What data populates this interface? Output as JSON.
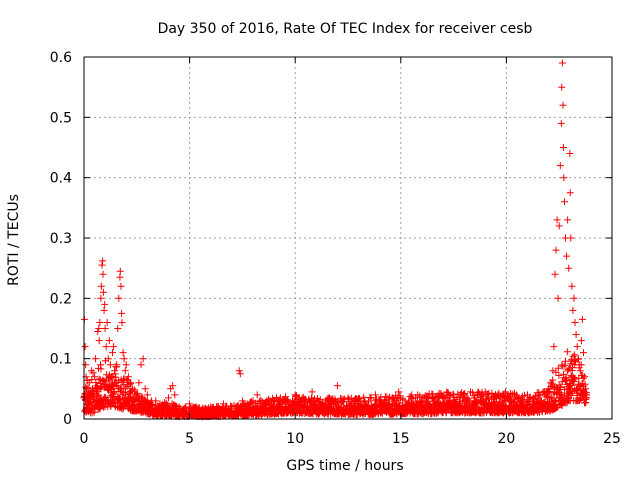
{
  "chart_data": {
    "type": "scatter",
    "title": "Day 350 of 2016, Rate Of TEC Index for receiver cesb",
    "xlabel": "GPS time / hours",
    "ylabel": "ROTI / TECUs",
    "xlim": [
      0,
      25
    ],
    "ylim": [
      0,
      0.6
    ],
    "x_ticks": [
      "0",
      "5",
      "10",
      "15",
      "20",
      "25"
    ],
    "y_ticks": [
      "0",
      "0.1",
      "0.2",
      "0.3",
      "0.4",
      "0.5",
      "0.6"
    ],
    "grid": true,
    "marker": "plus",
    "series_color": "#ff0000",
    "series": [
      {
        "points": [
          [
            0.02,
            0.165
          ],
          [
            0.05,
            0.12
          ],
          [
            0.08,
            0.09
          ],
          [
            0.1,
            0.07
          ],
          [
            0.12,
            0.05
          ],
          [
            0.15,
            0.04
          ],
          [
            0.2,
            0.03
          ],
          [
            0.25,
            0.06
          ],
          [
            0.3,
            0.045
          ],
          [
            0.35,
            0.08
          ],
          [
            0.4,
            0.05
          ],
          [
            0.45,
            0.035
          ],
          [
            0.5,
            0.07
          ],
          [
            0.55,
            0.1
          ],
          [
            0.6,
            0.055
          ],
          [
            0.65,
            0.145
          ],
          [
            0.7,
            0.15
          ],
          [
            0.72,
            0.13
          ],
          [
            0.75,
            0.16
          ],
          [
            0.78,
            0.09
          ],
          [
            0.8,
            0.2
          ],
          [
            0.82,
            0.22
          ],
          [
            0.85,
            0.255
          ],
          [
            0.88,
            0.262
          ],
          [
            0.9,
            0.24
          ],
          [
            0.92,
            0.21
          ],
          [
            0.95,
            0.18
          ],
          [
            0.98,
            0.19
          ],
          [
            1.0,
            0.15
          ],
          [
            1.05,
            0.12
          ],
          [
            1.1,
            0.16
          ],
          [
            1.15,
            0.1
          ],
          [
            1.2,
            0.13
          ],
          [
            1.25,
            0.09
          ],
          [
            1.3,
            0.07
          ],
          [
            1.35,
            0.11
          ],
          [
            1.4,
            0.12
          ],
          [
            1.45,
            0.08
          ],
          [
            1.5,
            0.06
          ],
          [
            1.55,
            0.09
          ],
          [
            1.6,
            0.15
          ],
          [
            1.65,
            0.2
          ],
          [
            1.7,
            0.235
          ],
          [
            1.72,
            0.245
          ],
          [
            1.75,
            0.22
          ],
          [
            1.78,
            0.175
          ],
          [
            1.8,
            0.16
          ],
          [
            1.85,
            0.11
          ],
          [
            1.9,
            0.1
          ],
          [
            1.95,
            0.08
          ],
          [
            2.0,
            0.09
          ],
          [
            2.1,
            0.07
          ],
          [
            2.2,
            0.06
          ],
          [
            2.3,
            0.05
          ],
          [
            2.4,
            0.045
          ],
          [
            2.5,
            0.04
          ],
          [
            2.6,
            0.06
          ],
          [
            2.7,
            0.09
          ],
          [
            2.8,
            0.1
          ],
          [
            2.9,
            0.05
          ],
          [
            3.0,
            0.04
          ],
          [
            3.2,
            0.03
          ],
          [
            3.4,
            0.03
          ],
          [
            3.6,
            0.025
          ],
          [
            3.8,
            0.02
          ],
          [
            4.0,
            0.035
          ],
          [
            4.1,
            0.05
          ],
          [
            4.2,
            0.055
          ],
          [
            4.3,
            0.04
          ],
          [
            4.5,
            0.02
          ],
          [
            4.8,
            0.02
          ],
          [
            5.0,
            0.025
          ],
          [
            5.3,
            0.02
          ],
          [
            5.6,
            0.015
          ],
          [
            6.0,
            0.02
          ],
          [
            6.3,
            0.02
          ],
          [
            6.6,
            0.025
          ],
          [
            7.0,
            0.02
          ],
          [
            7.2,
            0.02
          ],
          [
            7.35,
            0.08
          ],
          [
            7.4,
            0.075
          ],
          [
            7.5,
            0.03
          ],
          [
            7.8,
            0.02
          ],
          [
            8.0,
            0.03
          ],
          [
            8.2,
            0.04
          ],
          [
            8.5,
            0.025
          ],
          [
            8.8,
            0.03
          ],
          [
            9.0,
            0.02
          ],
          [
            9.3,
            0.035
          ],
          [
            9.6,
            0.03
          ],
          [
            10.0,
            0.04
          ],
          [
            10.2,
            0.035
          ],
          [
            10.5,
            0.03
          ],
          [
            10.8,
            0.045
          ],
          [
            11.0,
            0.03
          ],
          [
            11.3,
            0.025
          ],
          [
            11.6,
            0.035
          ],
          [
            11.8,
            0.03
          ],
          [
            12.0,
            0.055
          ],
          [
            12.2,
            0.03
          ],
          [
            12.5,
            0.035
          ],
          [
            12.8,
            0.03
          ],
          [
            13.0,
            0.025
          ],
          [
            13.3,
            0.03
          ],
          [
            13.6,
            0.035
          ],
          [
            13.8,
            0.04
          ],
          [
            14.0,
            0.03
          ],
          [
            14.3,
            0.025
          ],
          [
            14.6,
            0.035
          ],
          [
            14.9,
            0.045
          ],
          [
            15.2,
            0.03
          ],
          [
            15.5,
            0.035
          ],
          [
            15.8,
            0.04
          ],
          [
            16.0,
            0.03
          ],
          [
            16.3,
            0.035
          ],
          [
            16.6,
            0.03
          ],
          [
            16.9,
            0.04
          ],
          [
            17.2,
            0.035
          ],
          [
            17.5,
            0.04
          ],
          [
            17.8,
            0.035
          ],
          [
            18.0,
            0.04
          ],
          [
            18.3,
            0.045
          ],
          [
            18.5,
            0.035
          ],
          [
            18.8,
            0.04
          ],
          [
            19.0,
            0.045
          ],
          [
            19.3,
            0.035
          ],
          [
            19.6,
            0.04
          ],
          [
            19.9,
            0.035
          ],
          [
            20.2,
            0.04
          ],
          [
            20.5,
            0.035
          ],
          [
            20.8,
            0.03
          ],
          [
            21.0,
            0.04
          ],
          [
            21.3,
            0.035
          ],
          [
            21.6,
            0.04
          ],
          [
            21.8,
            0.045
          ],
          [
            22.0,
            0.05
          ],
          [
            22.1,
            0.06
          ],
          [
            22.2,
            0.08
          ],
          [
            22.25,
            0.12
          ],
          [
            22.3,
            0.24
          ],
          [
            22.35,
            0.28
          ],
          [
            22.4,
            0.33
          ],
          [
            22.45,
            0.2
          ],
          [
            22.5,
            0.32
          ],
          [
            22.55,
            0.42
          ],
          [
            22.6,
            0.49
          ],
          [
            22.62,
            0.55
          ],
          [
            22.65,
            0.59
          ],
          [
            22.68,
            0.52
          ],
          [
            22.7,
            0.45
          ],
          [
            22.72,
            0.4
          ],
          [
            22.75,
            0.36
          ],
          [
            22.8,
            0.3
          ],
          [
            22.85,
            0.27
          ],
          [
            22.9,
            0.33
          ],
          [
            22.95,
            0.25
          ],
          [
            23.0,
            0.44
          ],
          [
            23.02,
            0.375
          ],
          [
            23.05,
            0.3
          ],
          [
            23.1,
            0.22
          ],
          [
            23.15,
            0.18
          ],
          [
            23.2,
            0.2
          ],
          [
            23.25,
            0.16
          ],
          [
            23.3,
            0.14
          ],
          [
            23.35,
            0.12
          ],
          [
            23.4,
            0.1
          ],
          [
            23.45,
            0.09
          ],
          [
            23.5,
            0.08
          ],
          [
            23.55,
            0.13
          ],
          [
            23.6,
            0.165
          ],
          [
            23.65,
            0.11
          ],
          [
            23.7,
            0.07
          ],
          [
            23.75,
            0.05
          ],
          [
            23.8,
            0.04
          ]
        ]
      }
    ],
    "dense_band": [
      [
        0.0,
        0.01,
        0.06
      ],
      [
        0.5,
        0.01,
        0.08
      ],
      [
        1.0,
        0.02,
        0.1
      ],
      [
        1.5,
        0.02,
        0.09
      ],
      [
        2.0,
        0.015,
        0.07
      ],
      [
        2.5,
        0.012,
        0.05
      ],
      [
        3.0,
        0.008,
        0.03
      ],
      [
        3.5,
        0.005,
        0.025
      ],
      [
        4.0,
        0.005,
        0.03
      ],
      [
        4.5,
        0.004,
        0.02
      ],
      [
        5.0,
        0.004,
        0.02
      ],
      [
        6.0,
        0.004,
        0.02
      ],
      [
        7.0,
        0.005,
        0.022
      ],
      [
        8.0,
        0.006,
        0.03
      ],
      [
        9.0,
        0.008,
        0.035
      ],
      [
        10.0,
        0.01,
        0.04
      ],
      [
        11.0,
        0.008,
        0.035
      ],
      [
        12.0,
        0.008,
        0.035
      ],
      [
        13.0,
        0.007,
        0.035
      ],
      [
        14.0,
        0.008,
        0.04
      ],
      [
        15.0,
        0.008,
        0.04
      ],
      [
        16.0,
        0.008,
        0.04
      ],
      [
        17.0,
        0.01,
        0.045
      ],
      [
        18.0,
        0.01,
        0.045
      ],
      [
        19.0,
        0.01,
        0.045
      ],
      [
        20.0,
        0.01,
        0.045
      ],
      [
        21.0,
        0.01,
        0.04
      ],
      [
        22.0,
        0.012,
        0.05
      ],
      [
        22.5,
        0.02,
        0.1
      ],
      [
        23.0,
        0.03,
        0.12
      ],
      [
        23.5,
        0.03,
        0.1
      ],
      [
        23.8,
        0.025,
        0.06
      ]
    ]
  }
}
